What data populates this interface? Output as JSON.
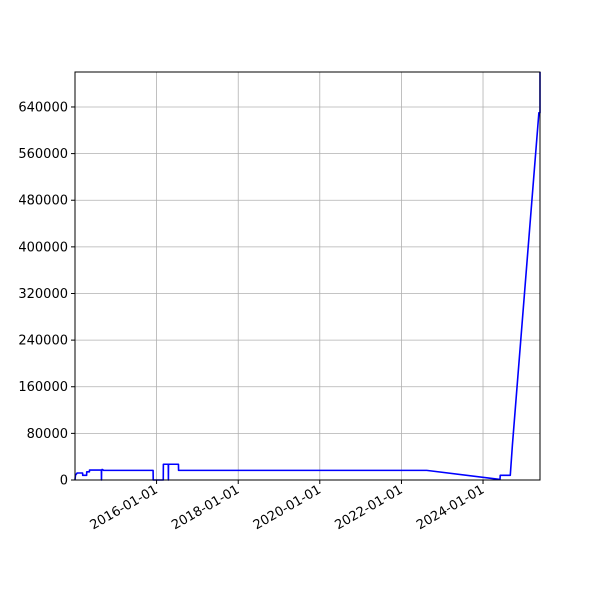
{
  "chart_data": {
    "type": "line",
    "title": "",
    "xlabel": "",
    "ylabel": "",
    "x_is_date": true,
    "xlim": [
      "2014-01-01",
      "2025-05-25"
    ],
    "ylim": [
      0,
      700000
    ],
    "grid": true,
    "line_color": "#0000ff",
    "axis_color": "#000000",
    "grid_color": "#b0b0b0",
    "x_ticks": [
      "2016-01-01",
      "2018-01-01",
      "2020-01-01",
      "2022-01-01",
      "2024-01-01"
    ],
    "x_tick_labels": [
      "2016-01-01",
      "2018-01-01",
      "2020-01-01",
      "2022-01-01",
      "2024-01-01"
    ],
    "y_ticks": [
      0,
      80000,
      160000,
      240000,
      320000,
      400000,
      480000,
      560000,
      640000
    ],
    "y_tick_labels": [
      "0",
      "80000",
      "160000",
      "240000",
      "320000",
      "400000",
      "480000",
      "560000",
      "640000"
    ],
    "series": [
      {
        "x": [
          "2014-01-01",
          "2014-01-05",
          "2014-01-20",
          "2014-03-10",
          "2014-03-11",
          "2014-04-15",
          "2014-04-16",
          "2014-05-10",
          "2014-05-11",
          "2014-08-25",
          "2014-08-26",
          "2014-08-27",
          "2014-09-01",
          "2014-09-15",
          "2015-12-01",
          "2015-12-02",
          "2016-01-15",
          "2016-03-01",
          "2016-03-02",
          "2016-03-03",
          "2016-04-15",
          "2016-04-16",
          "2016-04-17",
          "2016-07-15",
          "2016-07-16",
          "2022-08-15",
          "2024-06-01",
          "2024-06-03",
          "2024-09-01",
          "2024-09-20",
          "2025-05-15",
          "2025-05-25",
          "2025-05-26"
        ],
        "y": [
          0,
          8000,
          12000,
          12000,
          8000,
          8000,
          14000,
          14000,
          17000,
          17000,
          0,
          16000,
          18000,
          16500,
          16500,
          0,
          0,
          0,
          27000,
          27000,
          27000,
          0,
          27000,
          27000,
          16500,
          16500,
          1000,
          8000,
          8000,
          60000,
          630000,
          630000,
          700000
        ]
      }
    ]
  }
}
